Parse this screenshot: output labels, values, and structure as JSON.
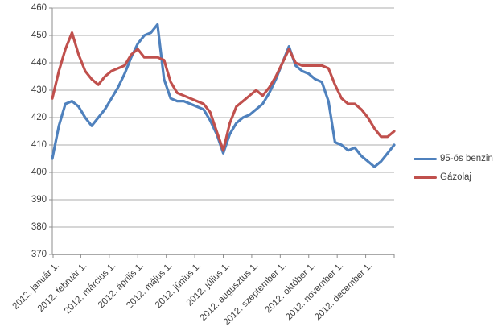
{
  "chart_data": {
    "type": "line",
    "title": "",
    "xlabel": "",
    "ylabel": "",
    "ylim": [
      370,
      460
    ],
    "y_ticks": [
      460,
      450,
      440,
      430,
      420,
      410,
      400,
      390,
      380,
      370
    ],
    "grid": true,
    "legend_position": "right",
    "x_tick_labels": [
      "2012. január 1.",
      "2012. február 1.",
      "2012. március 1.",
      "2012. április 1.",
      "2012. május 1.",
      "2012. június 1.",
      "2012. július 1.",
      "2012. augusztus 1.",
      "2012. szeptember 1.",
      "2012. október 1.",
      "2012. november 1.",
      "2012. december 1."
    ],
    "x_unit": "weekly samples across 2012",
    "series": [
      {
        "name": "95-ös benzin",
        "color": "#4F81BD",
        "values": [
          405,
          417,
          425,
          426,
          424,
          420,
          417,
          420,
          423,
          427,
          431,
          436,
          442,
          447,
          450,
          451,
          454,
          434,
          427,
          426,
          426,
          425,
          424,
          423,
          419,
          414,
          407,
          414,
          418,
          420,
          421,
          423,
          425,
          429,
          434,
          440,
          446,
          439,
          437,
          436,
          434,
          433,
          426,
          411,
          410,
          408,
          409,
          406,
          404,
          402,
          404,
          407,
          410
        ]
      },
      {
        "name": "Gázolaj",
        "color": "#C0504D",
        "values": [
          427,
          437,
          445,
          451,
          443,
          437,
          434,
          432,
          435,
          437,
          438,
          439,
          443,
          445,
          442,
          442,
          442,
          441,
          433,
          429,
          428,
          427,
          426,
          425,
          422,
          415,
          408,
          418,
          424,
          426,
          428,
          430,
          428,
          431,
          435,
          440,
          445,
          440,
          439,
          439,
          439,
          439,
          438,
          432,
          427,
          425,
          425,
          423,
          420,
          416,
          413,
          413,
          415
        ]
      }
    ],
    "style": {
      "gridline_color": "#ACACAC",
      "axis_color": "#8E8E8E",
      "text_color": "#3f3f3f",
      "background": "#ffffff"
    }
  }
}
